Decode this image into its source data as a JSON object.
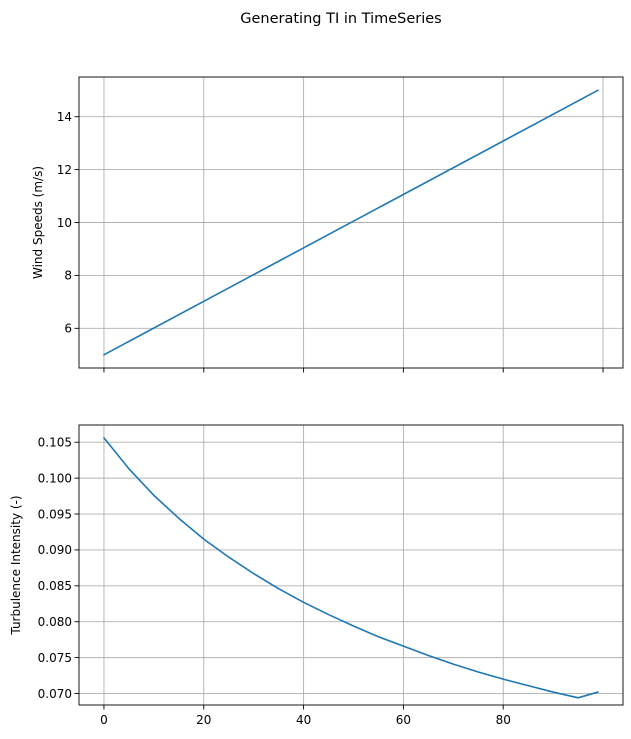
{
  "figure": {
    "title": "Generating TI in TimeSeries"
  },
  "colors": {
    "series": "#1f77b4",
    "grid": "#b0b0b0"
  },
  "chart_data": [
    {
      "type": "line",
      "title": "",
      "xlabel": "",
      "ylabel": "Wind Speeds (m/s)",
      "xlim": [
        -5,
        104
      ],
      "ylim": [
        4.5,
        15.5
      ],
      "xticks": [
        0,
        20,
        40,
        60,
        80,
        100
      ],
      "xtick_labels_visible": false,
      "yticks": [
        6,
        8,
        10,
        12,
        14
      ],
      "ytick_labels": [
        "6",
        "8",
        "10",
        "12",
        "14"
      ],
      "grid": true,
      "series": [
        {
          "x": [
            0,
            99
          ],
          "y": [
            5.0,
            15.0
          ]
        }
      ]
    },
    {
      "type": "line",
      "title": "",
      "xlabel": "",
      "ylabel": "Turbulence Intensity (-)",
      "xlim": [
        -5,
        104
      ],
      "ylim": [
        0.0684,
        0.1074
      ],
      "xticks": [
        0,
        20,
        40,
        60,
        80
      ],
      "xtick_labels": [
        "0",
        "20",
        "40",
        "60",
        "80"
      ],
      "xtick_labels_visible": true,
      "yticks": [
        0.07,
        0.075,
        0.08,
        0.085,
        0.09,
        0.095,
        0.1,
        0.105
      ],
      "ytick_labels": [
        "0.070",
        "0.075",
        "0.080",
        "0.085",
        "0.090",
        "0.095",
        "0.100",
        "0.105"
      ],
      "grid": true,
      "series": [
        {
          "x": [
            0,
            5,
            10,
            15,
            20,
            25,
            30,
            35,
            40,
            45,
            50,
            55,
            60,
            65,
            70,
            75,
            80,
            85,
            90,
            95,
            99
          ],
          "y": [
            0.1056,
            0.1013,
            0.0976,
            0.0944,
            0.0915,
            0.089,
            0.0867,
            0.0846,
            0.0827,
            0.081,
            0.0794,
            0.0779,
            0.0766,
            0.0753,
            0.0741,
            0.073,
            0.072,
            0.0711,
            0.0702,
            0.0694,
            0.0702
          ]
        }
      ]
    }
  ]
}
